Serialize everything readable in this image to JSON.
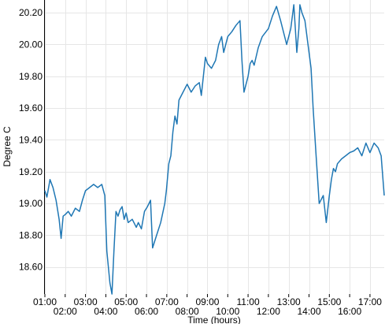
{
  "chart_data": {
    "type": "line",
    "xlabel": "Time (hours)",
    "ylabel": "Degree C",
    "xlim": [
      1.0,
      17.7
    ],
    "ylim": [
      18.43,
      20.28
    ],
    "grid": true,
    "line_color": "#1f77b4",
    "x_ticks": [
      {
        "value": 1,
        "label": "01:00"
      },
      {
        "value": 2,
        "label": "02:00"
      },
      {
        "value": 3,
        "label": "03:00"
      },
      {
        "value": 4,
        "label": "04:00"
      },
      {
        "value": 5,
        "label": "05:00"
      },
      {
        "value": 6,
        "label": "06:00"
      },
      {
        "value": 7,
        "label": "07:00"
      },
      {
        "value": 8,
        "label": "08:00"
      },
      {
        "value": 9,
        "label": "09:00"
      },
      {
        "value": 10,
        "label": "10:00"
      },
      {
        "value": 11,
        "label": "11:00"
      },
      {
        "value": 12,
        "label": "12:00"
      },
      {
        "value": 13,
        "label": "13:00"
      },
      {
        "value": 14,
        "label": "14:00"
      },
      {
        "value": 15,
        "label": "15:00"
      },
      {
        "value": 16,
        "label": "16:00"
      },
      {
        "value": 17,
        "label": "17:00"
      }
    ],
    "y_ticks": [
      {
        "value": 18.6,
        "label": "18.60"
      },
      {
        "value": 18.8,
        "label": "18.80"
      },
      {
        "value": 19.0,
        "label": "19.00"
      },
      {
        "value": 19.2,
        "label": "19.20"
      },
      {
        "value": 19.4,
        "label": "19.40"
      },
      {
        "value": 19.6,
        "label": "19.60"
      },
      {
        "value": 19.8,
        "label": "19.80"
      },
      {
        "value": 20.0,
        "label": "20.00"
      },
      {
        "value": 20.2,
        "label": "20.20"
      }
    ],
    "series": [
      {
        "x": [
          1.0,
          1.1,
          1.25,
          1.4,
          1.55,
          1.7,
          1.8,
          1.9,
          2.0,
          2.15,
          2.3,
          2.5,
          2.7,
          2.85,
          3.0,
          3.2,
          3.4,
          3.6,
          3.8,
          3.95,
          4.05,
          4.2,
          4.3,
          4.4,
          4.5,
          4.6,
          4.7,
          4.8,
          4.9,
          5.0,
          5.1,
          5.3,
          5.5,
          5.6,
          5.75,
          5.9,
          6.05,
          6.2,
          6.3,
          6.5,
          6.7,
          6.9,
          6.98,
          7.1,
          7.2,
          7.3,
          7.4,
          7.5,
          7.6,
          7.8,
          8.0,
          8.2,
          8.4,
          8.6,
          8.7,
          8.9,
          9.0,
          9.2,
          9.4,
          9.55,
          9.7,
          9.8,
          10.0,
          10.2,
          10.4,
          10.6,
          10.7,
          10.8,
          11.0,
          11.1,
          11.2,
          11.3,
          11.5,
          11.7,
          12.0,
          12.2,
          12.4,
          12.6,
          12.9,
          13.1,
          13.25,
          13.4,
          13.5,
          13.55,
          13.65,
          13.8,
          13.95,
          14.1,
          14.2,
          14.35,
          14.5,
          14.7,
          14.85,
          15.0,
          15.1,
          15.2,
          15.3,
          15.4,
          15.6,
          15.8,
          16.0,
          16.2,
          16.4,
          16.6,
          16.8,
          17.0,
          17.2,
          17.4,
          17.55,
          17.7
        ],
        "y": [
          19.08,
          19.04,
          19.15,
          19.1,
          19.02,
          18.9,
          18.78,
          18.92,
          18.93,
          18.95,
          18.92,
          18.97,
          18.95,
          19.02,
          19.08,
          19.1,
          19.12,
          19.1,
          19.12,
          19.05,
          18.7,
          18.5,
          18.43,
          18.7,
          18.95,
          18.92,
          18.96,
          18.98,
          18.9,
          18.94,
          18.88,
          18.9,
          18.85,
          18.88,
          18.84,
          18.95,
          18.98,
          19.02,
          18.72,
          18.8,
          18.88,
          19.0,
          19.08,
          19.25,
          19.3,
          19.45,
          19.55,
          19.5,
          19.65,
          19.7,
          19.75,
          19.7,
          19.74,
          19.76,
          19.68,
          19.92,
          19.88,
          19.85,
          19.9,
          20.0,
          20.05,
          19.95,
          20.05,
          20.08,
          20.12,
          20.15,
          19.9,
          19.7,
          19.8,
          19.88,
          19.9,
          19.87,
          19.98,
          20.05,
          20.1,
          20.18,
          20.24,
          20.15,
          20.0,
          20.1,
          20.25,
          19.95,
          20.1,
          20.25,
          20.2,
          20.15,
          20.0,
          19.85,
          19.6,
          19.3,
          19.0,
          19.05,
          18.88,
          19.05,
          19.15,
          19.22,
          19.2,
          19.25,
          19.28,
          19.3,
          19.32,
          19.33,
          19.35,
          19.3,
          19.38,
          19.32,
          19.38,
          19.35,
          19.3,
          19.05
        ]
      }
    ]
  }
}
